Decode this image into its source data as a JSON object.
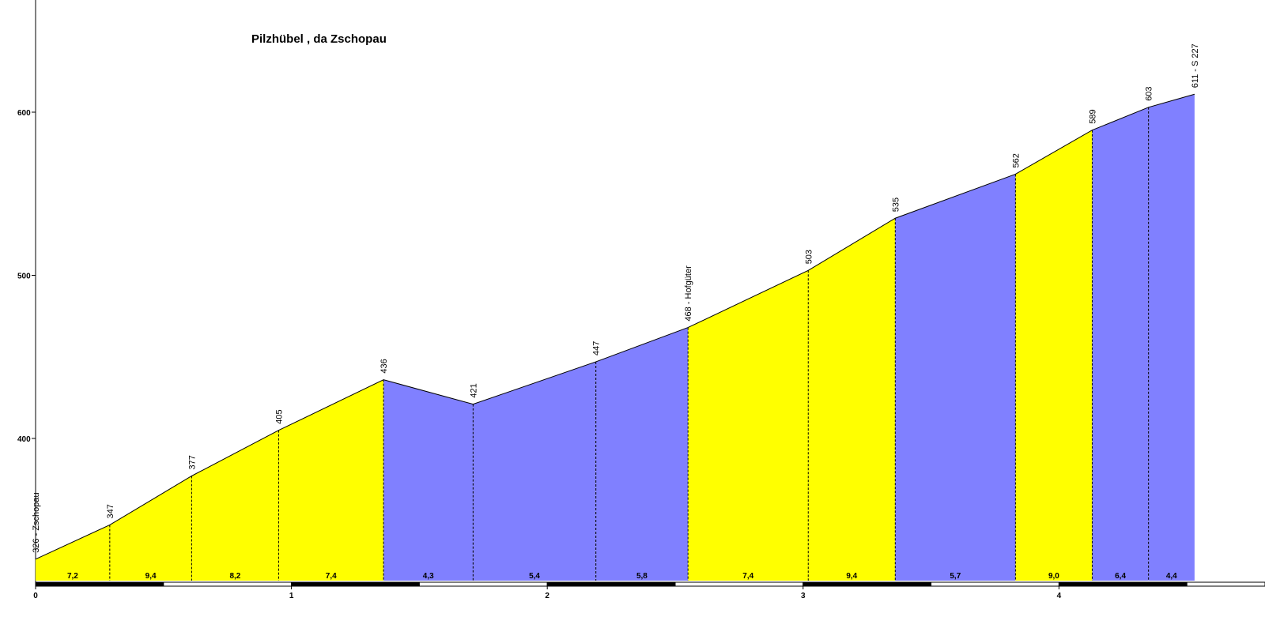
{
  "chart_data": {
    "type": "area",
    "title": "Pilzhübel , da Zschopau",
    "xlabel": "",
    "ylabel": "",
    "xlim": [
      0,
      4.75
    ],
    "ylim": [
      315,
      675
    ],
    "y_ticks": [
      "400",
      "500",
      "600"
    ],
    "x_ticks": [
      "0",
      "1",
      "2",
      "3",
      "4"
    ],
    "points": [
      {
        "km": 0.0,
        "alt": 326,
        "label": "326 - Zschopau"
      },
      {
        "km": 0.29,
        "alt": 347,
        "label": "347"
      },
      {
        "km": 0.61,
        "alt": 377,
        "label": "377"
      },
      {
        "km": 0.95,
        "alt": 405,
        "label": "405"
      },
      {
        "km": 1.36,
        "alt": 436,
        "label": "436"
      },
      {
        "km": 1.71,
        "alt": 421,
        "label": "421"
      },
      {
        "km": 2.19,
        "alt": 447,
        "label": "447"
      },
      {
        "km": 2.55,
        "alt": 468,
        "label": "468 - Hofgüter"
      },
      {
        "km": 3.02,
        "alt": 503,
        "label": "503"
      },
      {
        "km": 3.36,
        "alt": 535,
        "label": "535"
      },
      {
        "km": 3.83,
        "alt": 562,
        "label": "562"
      },
      {
        "km": 4.13,
        "alt": 589,
        "label": "589"
      },
      {
        "km": 4.35,
        "alt": 603,
        "label": "603"
      },
      {
        "km": 4.53,
        "alt": 611,
        "label": "611 - S 227"
      }
    ],
    "segments": [
      {
        "gradient": "7,2",
        "color": "#ffff00"
      },
      {
        "gradient": "9,4",
        "color": "#ffff00"
      },
      {
        "gradient": "8,2",
        "color": "#ffff00"
      },
      {
        "gradient": "7,4",
        "color": "#ffff00"
      },
      {
        "gradient": "4,3",
        "color": "#8080ff"
      },
      {
        "gradient": "5,4",
        "color": "#8080ff"
      },
      {
        "gradient": "5,8",
        "color": "#8080ff"
      },
      {
        "gradient": "7,4",
        "color": "#ffff00"
      },
      {
        "gradient": "9,4",
        "color": "#ffff00"
      },
      {
        "gradient": "5,7",
        "color": "#8080ff"
      },
      {
        "gradient": "9,0",
        "color": "#ffff00"
      },
      {
        "gradient": "6,4",
        "color": "#8080ff"
      },
      {
        "gradient": "4,4",
        "color": "#8080ff"
      }
    ],
    "colors": {
      "yellow": "#ffff00",
      "blue": "#8080ff"
    }
  }
}
